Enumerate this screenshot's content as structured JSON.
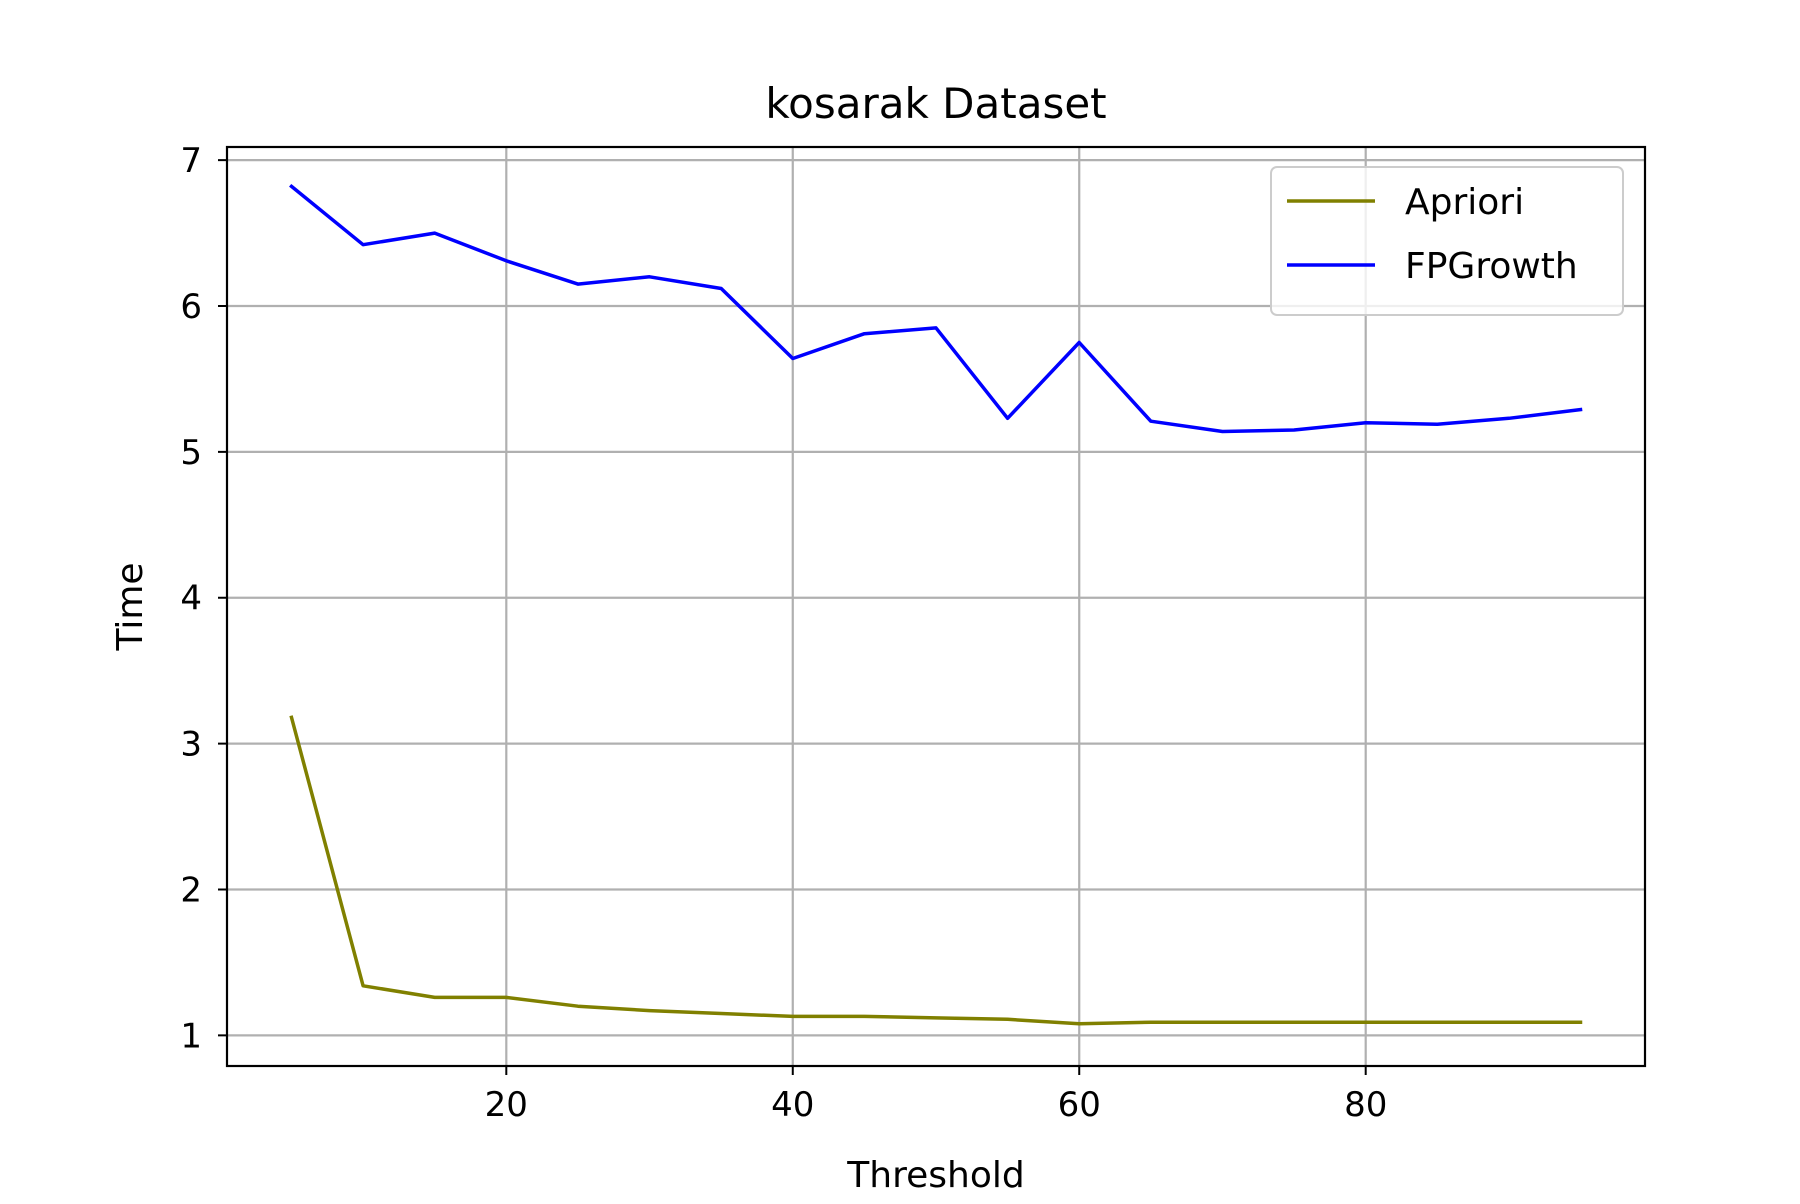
{
  "chart_data": {
    "type": "line",
    "title": "kosarak Dataset",
    "xlabel": "Threshold",
    "ylabel": "Time",
    "xlim": [
      0.5,
      99.5
    ],
    "ylim": [
      0.79,
      7.09
    ],
    "xticks": [
      20,
      40,
      60,
      80
    ],
    "xtick_labels": [
      "20",
      "40",
      "60",
      "80"
    ],
    "yticks": [
      1,
      2,
      3,
      4,
      5,
      6,
      7
    ],
    "ytick_labels": [
      "1",
      "2",
      "3",
      "4",
      "5",
      "6",
      "7"
    ],
    "grid": true,
    "legend_position": "top-right",
    "x": [
      5,
      10,
      15,
      20,
      25,
      30,
      35,
      40,
      45,
      50,
      55,
      60,
      65,
      70,
      75,
      80,
      85,
      90,
      95
    ],
    "series": [
      {
        "name": "Apriori",
        "color": "#808000",
        "values": [
          3.18,
          1.34,
          1.26,
          1.26,
          1.2,
          1.17,
          1.15,
          1.13,
          1.13,
          1.12,
          1.11,
          1.08,
          1.09,
          1.09,
          1.09,
          1.09,
          1.09,
          1.09,
          1.09
        ]
      },
      {
        "name": "FPGrowth",
        "color": "#0000ff",
        "values": [
          6.82,
          6.42,
          6.5,
          6.31,
          6.15,
          6.2,
          6.12,
          5.64,
          5.81,
          5.85,
          5.23,
          5.75,
          5.21,
          5.14,
          5.15,
          5.2,
          5.19,
          5.23,
          5.29
        ]
      }
    ]
  }
}
